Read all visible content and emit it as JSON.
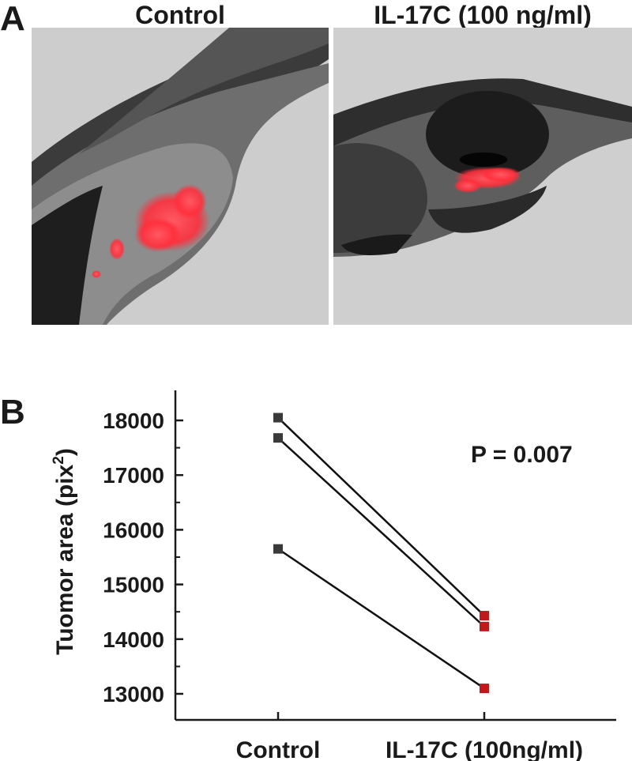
{
  "panel_a": {
    "letter": "A",
    "images": [
      {
        "title": "Control",
        "fluorescence_color": "#ff3b46"
      },
      {
        "title": "IL-17C (100 ng/ml)",
        "fluorescence_color": "#ff3b46"
      }
    ]
  },
  "panel_b": {
    "letter": "B"
  },
  "chart_data": {
    "type": "line",
    "categories": [
      "Control",
      "IL-17C (100ng/ml)"
    ],
    "ylabel": "Tuomor area (pix",
    "ylabel_superscript": "2",
    "ylabel_suffix": ")",
    "ylim": [
      12800,
      18500
    ],
    "yticks": [
      13000,
      14000,
      15000,
      16000,
      17000,
      18000
    ],
    "annotation": "P = 0.007",
    "paired_series": [
      {
        "values": [
          18050,
          14430
        ]
      },
      {
        "values": [
          17680,
          14230
        ]
      },
      {
        "values": [
          15650,
          13100
        ]
      }
    ],
    "marker_colors": [
      "#3a3a3a",
      "#c0191c"
    ]
  }
}
